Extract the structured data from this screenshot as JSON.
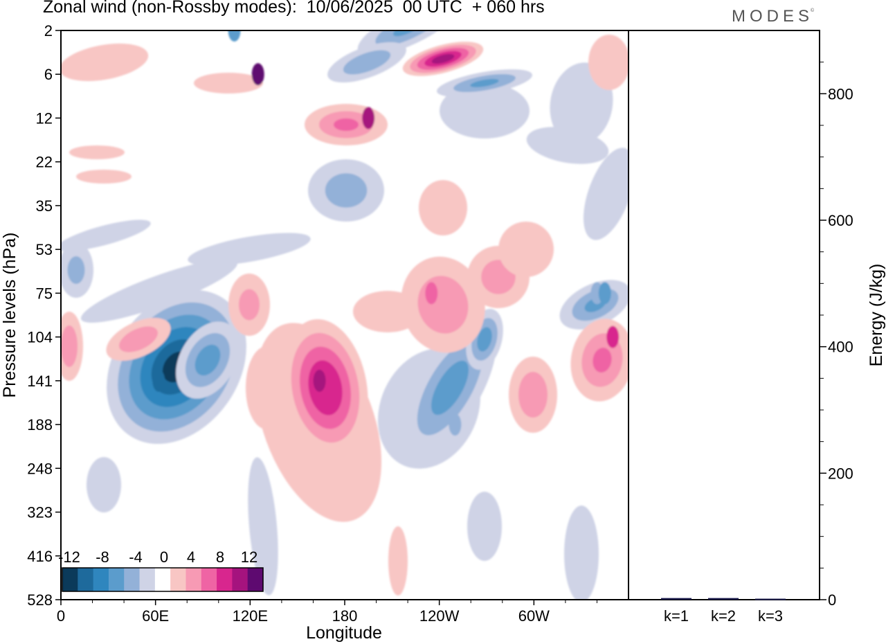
{
  "header": {
    "title": "Zonal wind (non-Rossby modes):  10/06/2025  00 UTC  + 060 hrs",
    "logo_text": "MODES",
    "logo_mark": "©"
  },
  "chart_data": [
    {
      "type": "heatmap",
      "title": "Zonal wind (non-Rossby modes):  10/06/2025  00 UTC  + 060 hrs",
      "xlabel": "Longitude",
      "ylabel": "Pressure levels (hPa)",
      "x_ticks": [
        "0",
        "60E",
        "120E",
        "180",
        "120W",
        "60W"
      ],
      "x_tick_values": [
        0,
        60,
        120,
        180,
        240,
        300
      ],
      "xlim": [
        0,
        360
      ],
      "y_ticks": [
        "2",
        "6",
        "12",
        "22",
        "35",
        "53",
        "75",
        "104",
        "141",
        "188",
        "248",
        "323",
        "416",
        "528"
      ],
      "colorbar": {
        "labels": [
          "-12",
          "-8",
          "-4",
          "0",
          "4",
          "8",
          "12"
        ],
        "levels": [
          -14,
          -12,
          -10,
          -8,
          -6,
          -4,
          -2,
          2,
          4,
          6,
          8,
          10,
          12,
          14
        ],
        "colors": [
          "#0b3a5a",
          "#1e6a9c",
          "#2f86be",
          "#5b9ccc",
          "#93b1d8",
          "#cfd3e6",
          "#ffffff",
          "#f8c6c4",
          "#f79ab4",
          "#ef64a4",
          "#d8268e",
          "#a5137e",
          "#5e0a70"
        ]
      },
      "features": [
        {
          "lon": 62,
          "level": "141",
          "value": -14
        },
        {
          "lon": 164,
          "level": "141",
          "value": 9
        },
        {
          "lon": 125,
          "level": "6",
          "value": 11
        },
        {
          "lon": 110,
          "level": "2",
          "value": -9
        },
        {
          "lon": 195,
          "level": "12",
          "value": 8
        },
        {
          "lon": 250,
          "level": "188",
          "value": -8
        },
        {
          "lon": 340,
          "level": "75",
          "value": -7
        },
        {
          "lon": 350,
          "level": "104",
          "value": 6
        },
        {
          "lon": 235,
          "level": "75",
          "value": 5
        },
        {
          "lon": 345,
          "level": "75",
          "value": -9
        }
      ]
    },
    {
      "type": "bar",
      "categories": [
        "k=1",
        "k=2",
        "k=3"
      ],
      "values": [
        1.5,
        1.5,
        0.5
      ],
      "ylabel": "Energy (J/kg)",
      "ylim": [
        0,
        900
      ],
      "y_ticks": [
        "0",
        "200",
        "400",
        "600",
        "800"
      ],
      "y_tick_values": [
        0,
        200,
        400,
        600,
        800
      ],
      "bar_color": "#1a1a4a"
    }
  ]
}
